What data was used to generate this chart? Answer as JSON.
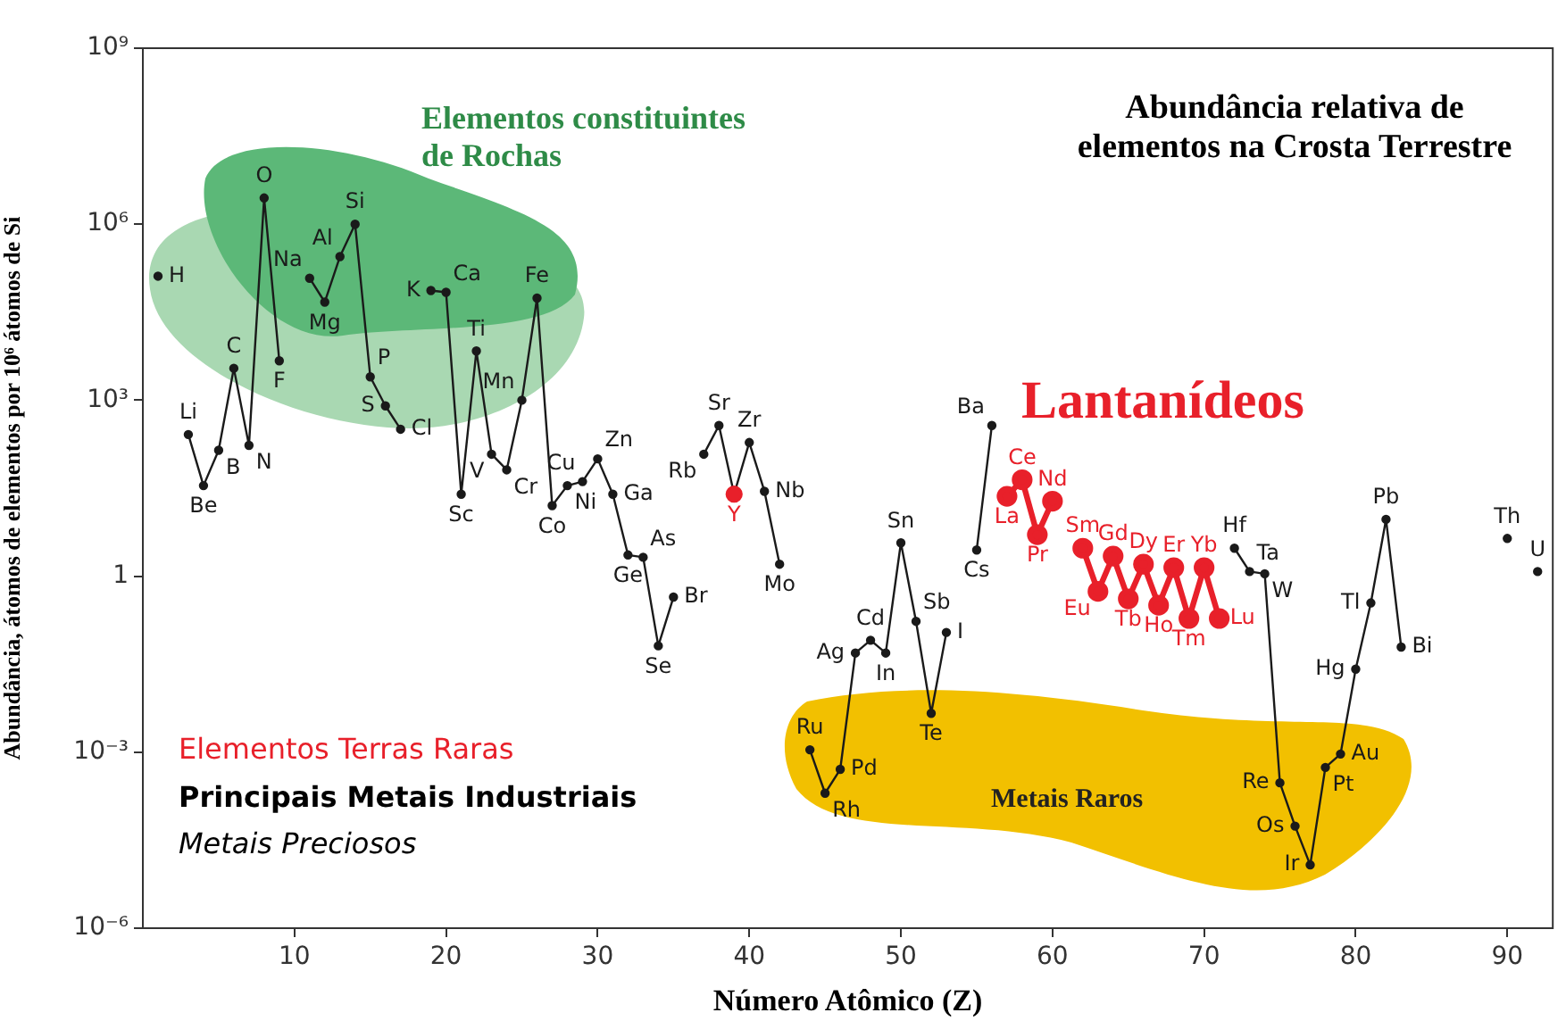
{
  "chart_data": {
    "type": "line",
    "title": "Abundância relativa de elementos na Crosta Terrestre",
    "xlabel": "Número Atômico (Z)",
    "ylabel": "Abundância, átomos de elementos por 10⁶ átomos de Si",
    "x": [
      1,
      2,
      3,
      4,
      5,
      6,
      7,
      8,
      9,
      10,
      11,
      12,
      13,
      14,
      15,
      16,
      17,
      18,
      19,
      20,
      21,
      22,
      23,
      24,
      25,
      26,
      27,
      28,
      29,
      30,
      31,
      32,
      33,
      34,
      35,
      36,
      37,
      38,
      39,
      40,
      41,
      42,
      43,
      44,
      45,
      46,
      47,
      48,
      49,
      50,
      51,
      52,
      53,
      54,
      55,
      56,
      57,
      58,
      59,
      60,
      61,
      62,
      63,
      64,
      65,
      66,
      67,
      68,
      69,
      70,
      71,
      72,
      73,
      74,
      75,
      76,
      77,
      78,
      79,
      80,
      81,
      82,
      83,
      84,
      85,
      86,
      87,
      88,
      89,
      90,
      91,
      92
    ],
    "series": [
      {
        "color": "#1a1a1a",
        "values": [
          130000,
          null,
          260,
          35,
          140,
          3500,
          170,
          2800000,
          4700,
          null,
          120000,
          47000,
          280000,
          1000000,
          2500,
          800,
          320,
          null,
          74000,
          69000,
          25,
          6900,
          120,
          65,
          1000,
          55000,
          16,
          35,
          41,
          100,
          25,
          2.3,
          2.1,
          0.065,
          0.44,
          null,
          120,
          370,
          25,
          190,
          28,
          1.6,
          null,
          0.0011,
          0.0002,
          0.00051,
          0.049,
          0.081,
          0.049,
          3.7,
          0.17,
          0.0046,
          0.11,
          null,
          2.8,
          370,
          null,
          null,
          null,
          null,
          null,
          null,
          null,
          null,
          null,
          null,
          null,
          null,
          null,
          null,
          null,
          3,
          1.2,
          1.1,
          0.0003,
          5.5e-05,
          1.2e-05,
          0.00055,
          0.00093,
          0.026,
          0.35,
          9.3,
          0.062,
          null,
          null,
          null,
          null,
          null,
          null,
          4.4,
          null,
          1.2
        ],
        "colors": [
          "#1a1a1a",
          "#1a1a1a",
          "#1a1a1a",
          "#1a1a1a",
          "#1a1a1a",
          "#1a1a1a",
          "#1a1a1a",
          "#1a1a1a",
          "#1a1a1a",
          "#1a1a1a",
          "#1a1a1a",
          "#1a1a1a",
          "#1a1a1a",
          "#1a1a1a",
          "#1a1a1a",
          "#1a1a1a",
          "#1a1a1a",
          "#1a1a1a",
          "#1a1a1a",
          "#1a1a1a",
          "#1a1a1a",
          "#1a1a1a",
          "#1a1a1a",
          "#1a1a1a",
          "#1a1a1a",
          "#1a1a1a",
          "#1a1a1a",
          "#1a1a1a",
          "#1a1a1a",
          "#1a1a1a",
          "#1a1a1a",
          "#1a1a1a",
          "#1a1a1a",
          "#1a1a1a",
          "#1a1a1a",
          "#1a1a1a",
          "#1a1a1a",
          "#1a1a1a",
          "#e8202a",
          "#1a1a1a",
          "#1a1a1a",
          "#1a1a1a",
          "#1a1a1a",
          "#1a1a1a",
          "#1a1a1a",
          "#1a1a1a",
          "#1a1a1a",
          "#1a1a1a",
          "#1a1a1a",
          "#1a1a1a",
          "#1a1a1a",
          "#1a1a1a",
          "#1a1a1a",
          "#1a1a1a",
          "#1a1a1a",
          "#1a1a1a",
          "#e8202a",
          "#e8202a",
          "#e8202a",
          "#e8202a",
          "#e8202a",
          "#e8202a",
          "#e8202a",
          "#e8202a",
          "#e8202a",
          "#e8202a",
          "#e8202a",
          "#e8202a",
          "#e8202a",
          "#e8202a",
          "#e8202a",
          "#1a1a1a",
          "#1a1a1a",
          "#1a1a1a",
          "#1a1a1a",
          "#1a1a1a",
          "#1a1a1a",
          "#1a1a1a",
          "#1a1a1a",
          "#1a1a1a",
          "#1a1a1a",
          "#1a1a1a",
          "#1a1a1a",
          "#1a1a1a",
          "#1a1a1a",
          "#1a1a1a",
          "#1a1a1a",
          "#1a1a1a",
          "#1a1a1a",
          "#1a1a1a",
          "#1a1a1a",
          "#1a1a1a"
        ]
      },
      {
        "color": "#e8202a",
        "values": [
          null,
          null,
          null,
          null,
          null,
          null,
          null,
          null,
          null,
          null,
          null,
          null,
          null,
          null,
          null,
          null,
          null,
          null,
          null,
          null,
          null,
          null,
          null,
          null,
          null,
          null,
          null,
          null,
          null,
          null,
          null,
          null,
          null,
          null,
          null,
          null,
          null,
          null,
          null,
          null,
          null,
          null,
          null,
          null,
          null,
          null,
          null,
          null,
          null,
          null,
          null,
          null,
          null,
          null,
          null,
          null,
          23,
          44,
          5.1,
          19,
          null,
          3,
          0.55,
          2.2,
          0.41,
          1.6,
          0.32,
          1.4,
          0.19,
          1.4,
          0.19,
          null,
          null,
          null,
          null,
          null,
          null,
          null,
          null,
          null,
          null,
          null,
          null,
          null,
          null,
          null,
          null,
          null,
          null,
          null,
          null,
          null
        ]
      }
    ],
    "log": "y",
    "marker": "circle",
    "line_style": "solid",
    "xlim": [
      0,
      93
    ],
    "xticks": [
      10,
      20,
      30,
      40,
      50,
      60,
      70,
      80,
      90
    ],
    "ylim": [
      1e-06,
      1000000000
    ],
    "yticks": [
      {
        "value": 1e-06,
        "label": "10⁻⁶"
      },
      {
        "value": 0.001,
        "label": "10⁻³"
      },
      1,
      {
        "value": 1000,
        "label": "10³"
      },
      {
        "value": 1000000,
        "label": "10⁶"
      },
      {
        "value": 1000000000,
        "label": "10⁹"
      }
    ],
    "annotations": [
      "Elementos constituintes de Rochas",
      "Lantanídeos",
      "Metais Raros",
      "Elementos Terras Raras",
      "Principais Metais Industriais",
      "Metais Preciosos",
      {
        "text": "H",
        "x": 1,
        "y": 130000
      },
      {
        "text": "Li",
        "x": 3,
        "y": 260
      },
      {
        "text": "Be",
        "x": 4,
        "y": 35
      },
      {
        "text": "B",
        "x": 5,
        "y": 140
      },
      {
        "text": "C",
        "x": 6,
        "y": 3500
      },
      {
        "text": "N",
        "x": 7,
        "y": 170
      },
      {
        "text": "O",
        "x": 8,
        "y": 2800000
      },
      {
        "text": "F",
        "x": 9,
        "y": 4700
      },
      {
        "text": "Na",
        "x": 11,
        "y": 120000
      },
      {
        "text": "Mg",
        "x": 12,
        "y": 47000
      },
      {
        "text": "Al",
        "x": 13,
        "y": 280000
      },
      {
        "text": "Si",
        "x": 14,
        "y": 1000000
      },
      {
        "text": "P",
        "x": 15,
        "y": 2500
      },
      {
        "text": "S",
        "x": 16,
        "y": 800
      },
      {
        "text": "Cl",
        "x": 17,
        "y": 320
      },
      {
        "text": "K",
        "x": 19,
        "y": 74000
      },
      {
        "text": "Ca",
        "x": 20,
        "y": 69000
      },
      {
        "text": "Sc",
        "x": 21,
        "y": 25
      },
      {
        "text": "Ti",
        "x": 22,
        "y": 6900
      },
      {
        "text": "V",
        "x": 23,
        "y": 120
      },
      {
        "text": "Cr",
        "x": 24,
        "y": 65
      },
      {
        "text": "Mn",
        "x": 25,
        "y": 1000
      },
      {
        "text": "Fe",
        "x": 26,
        "y": 55000
      },
      {
        "text": "Co",
        "x": 27,
        "y": 16
      },
      {
        "text": "Ni",
        "x": 28,
        "y": 35
      },
      {
        "text": "Cu",
        "x": 29,
        "y": 41
      },
      {
        "text": "Zn",
        "x": 30,
        "y": 100
      },
      {
        "text": "Ga",
        "x": 31,
        "y": 25
      },
      {
        "text": "Ge",
        "x": 32,
        "y": 2.3
      },
      {
        "text": "As",
        "x": 33,
        "y": 2.1
      },
      {
        "text": "Se",
        "x": 34,
        "y": 0.065
      },
      {
        "text": "Br",
        "x": 35,
        "y": 0.44
      },
      {
        "text": "Rb",
        "x": 37,
        "y": 120
      },
      {
        "text": "Sr",
        "x": 38,
        "y": 370
      },
      {
        "text": "Y",
        "x": 39,
        "y": 25
      },
      {
        "text": "Zr",
        "x": 40,
        "y": 190
      },
      {
        "text": "Nb",
        "x": 41,
        "y": 28
      },
      {
        "text": "Mo",
        "x": 42,
        "y": 1.6
      },
      {
        "text": "Ru",
        "x": 44,
        "y": 0.0011
      },
      {
        "text": "Rh",
        "x": 45,
        "y": 0.0002
      },
      {
        "text": "Pd",
        "x": 46,
        "y": 0.00051
      },
      {
        "text": "Ag",
        "x": 47,
        "y": 0.049
      },
      {
        "text": "Cd",
        "x": 48,
        "y": 0.081
      },
      {
        "text": "In",
        "x": 49,
        "y": 0.049
      },
      {
        "text": "Sn",
        "x": 50,
        "y": 3.7
      },
      {
        "text": "Sb",
        "x": 51,
        "y": 0.17
      },
      {
        "text": "Te",
        "x": 52,
        "y": 0.0046
      },
      {
        "text": "I",
        "x": 53,
        "y": 0.11
      },
      {
        "text": "Cs",
        "x": 55,
        "y": 2.8
      },
      {
        "text": "Ba",
        "x": 56,
        "y": 370
      },
      {
        "text": "La",
        "x": 57,
        "y": 23
      },
      {
        "text": "Ce",
        "x": 58,
        "y": 44
      },
      {
        "text": "Pr",
        "x": 59,
        "y": 5.1
      },
      {
        "text": "Nd",
        "x": 60,
        "y": 19
      },
      {
        "text": "Sm",
        "x": 62,
        "y": 3
      },
      {
        "text": "Eu",
        "x": 63,
        "y": 0.55
      },
      {
        "text": "Gd",
        "x": 64,
        "y": 2.2
      },
      {
        "text": "Tb",
        "x": 65,
        "y": 0.41
      },
      {
        "text": "Dy",
        "x": 66,
        "y": 1.6
      },
      {
        "text": "Ho",
        "x": 67,
        "y": 0.32
      },
      {
        "text": "Er",
        "x": 68,
        "y": 1.4
      },
      {
        "text": "Tm",
        "x": 69,
        "y": 0.19
      },
      {
        "text": "Yb",
        "x": 70,
        "y": 1.4
      },
      {
        "text": "Lu",
        "x": 71,
        "y": 0.19
      },
      {
        "text": "Hf",
        "x": 72,
        "y": 3
      },
      {
        "text": "Ta",
        "x": 73,
        "y": 1.2
      },
      {
        "text": "W",
        "x": 74,
        "y": 1.1
      },
      {
        "text": "Re",
        "x": 75,
        "y": 0.0003
      },
      {
        "text": "Os",
        "x": 76,
        "y": 5.5e-05
      },
      {
        "text": "Ir",
        "x": 77,
        "y": 1.2e-05
      },
      {
        "text": "Pt",
        "x": 78,
        "y": 0.00055
      },
      {
        "text": "Au",
        "x": 79,
        "y": 0.00093
      },
      {
        "text": "Hg",
        "x": 80,
        "y": 0.026
      },
      {
        "text": "Tl",
        "x": 81,
        "y": 0.35
      },
      {
        "text": "Pb",
        "x": 82,
        "y": 9.3
      },
      {
        "text": "Bi",
        "x": 83,
        "y": 0.062
      },
      {
        "text": "Th",
        "x": 90,
        "y": 4.4
      },
      {
        "text": "U",
        "x": 92,
        "y": 1.2
      }
    ]
  }
}
